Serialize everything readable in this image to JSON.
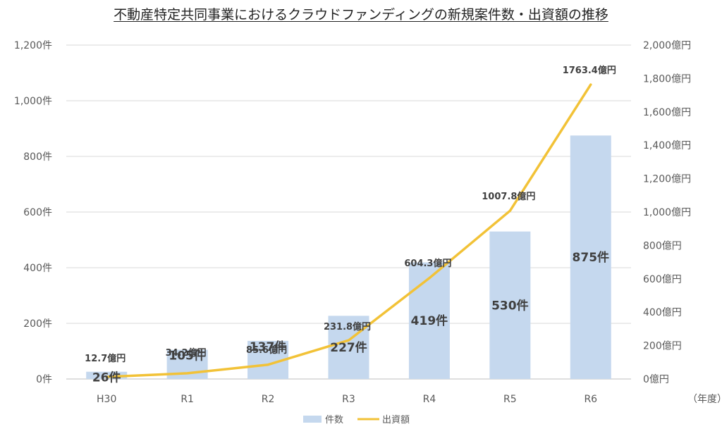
{
  "chart_data": {
    "type": "bar+line",
    "title": "不動産特定共同事業におけるクラウドファンディングの新規案件数・出資額の推移",
    "categories": [
      "H30",
      "R1",
      "R2",
      "R3",
      "R4",
      "R5",
      "R6"
    ],
    "x_unit_label": "（年度）",
    "series": [
      {
        "name": "件数",
        "type": "bar",
        "axis": "left",
        "color": "#c5d8ee",
        "values": [
          26,
          105,
          137,
          227,
          419,
          530,
          875
        ],
        "labels": [
          "26件",
          "105件",
          "137件",
          "227件",
          "419件",
          "530件",
          "875件"
        ]
      },
      {
        "name": "出資額",
        "type": "line",
        "axis": "right",
        "color": "#f2c237",
        "values": [
          12.7,
          34.2,
          85.6,
          231.8,
          604.3,
          1007.8,
          1763.4
        ],
        "labels": [
          "12.7億円",
          "34.2億円",
          "85.6億円",
          "231.8億円",
          "604.3億円",
          "1007.8億円",
          "1763.4億円"
        ]
      }
    ],
    "y_left": {
      "ylim": [
        0,
        1200
      ],
      "ticks": [
        0,
        200,
        400,
        600,
        800,
        1000,
        1200
      ],
      "tick_labels": [
        "0件",
        "200件",
        "400件",
        "600件",
        "800件",
        "1,000件",
        "1,200件"
      ]
    },
    "y_right": {
      "ylim": [
        0,
        2000
      ],
      "ticks": [
        0,
        200,
        400,
        600,
        800,
        1000,
        1200,
        1400,
        1600,
        1800,
        2000
      ],
      "tick_labels": [
        "0億円",
        "200億円",
        "400億円",
        "600億円",
        "800億円",
        "1,000億円",
        "1,200億円",
        "1,400億円",
        "1,600億円",
        "1,800億円",
        "2,000億円"
      ]
    },
    "grid": true,
    "legend": "bottom"
  }
}
